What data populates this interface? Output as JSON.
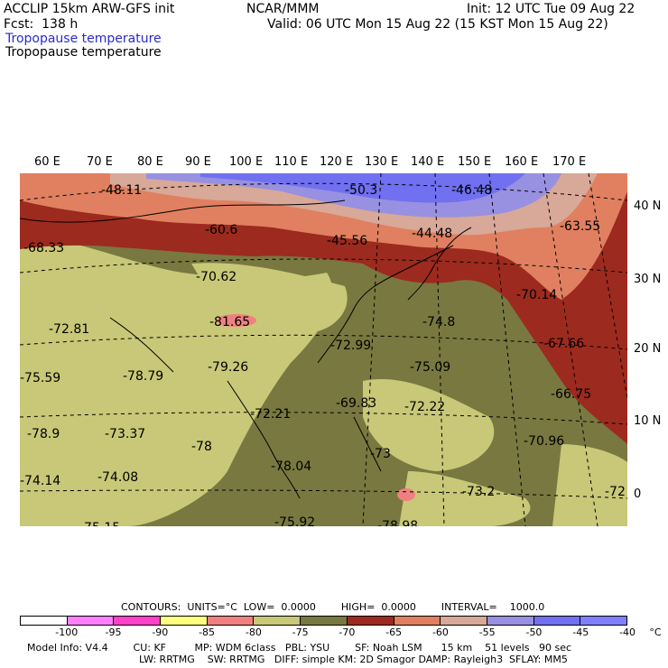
{
  "header": {
    "model": "ACCLIP 15km ARW-GFS init",
    "org": "NCAR/MMM",
    "init": "Init: 12 UTC Tue 09 Aug 22",
    "fcst": "Fcst:  138 h",
    "valid": "Valid: 06 UTC Mon 15 Aug 22 (15 KST Mon 15 Aug 22)",
    "field1": "Tropopause temperature",
    "field2": "Tropopause temperature"
  },
  "map": {
    "lon_labels": [
      "60 E",
      "70 E",
      "80 E",
      "90 E",
      "100 E",
      "110 E",
      "120 E",
      "130 E",
      "140 E",
      "150 E",
      "160 E",
      "170 E"
    ],
    "lat_labels": [
      "40 N",
      "30 N",
      "20 N",
      "10 N",
      "0"
    ],
    "values": [
      "-48.11",
      "-50.3",
      "-46.48",
      "-60.6",
      "-45.56",
      "-44.48",
      "-63.55",
      "-68.33",
      "-70.62",
      "-70.14",
      "-72.81",
      "-81.65",
      "-74.8",
      "-67.66",
      "-72.99",
      "-75.09",
      "-75.59",
      "-78.79",
      "-79.26",
      "-66.75",
      "-69.83",
      "-72.22",
      "-72.21",
      "-78.9",
      "-73.37",
      "-78",
      "-70.96",
      "-73",
      "-78.04",
      "-74.14",
      "-74.08",
      "-73.2",
      "-72",
      "-75.15",
      "-75.92",
      "-78.98"
    ]
  },
  "colors": {
    "water_low": "#ffffff",
    "c1": "#ff80ff",
    "c2": "#ff40c8",
    "c3": "#ffff80",
    "c4": "#f08080",
    "c5": "#c8c878",
    "c6": "#787840",
    "c7": "#9c2a1e",
    "c8": "#e08060",
    "c9": "#d8a898",
    "c10": "#9890e0",
    "c11": "#7070f0",
    "c12": "#8080ff"
  },
  "colorbar": {
    "contours_label": "CONTOURS:  UNITS=°C  LOW=  0.0000        HIGH=  0.0000        INTERVAL=    1000.0",
    "ticks": [
      "-100",
      "-95",
      "-90",
      "-85",
      "-80",
      "-75",
      "-70",
      "-65",
      "-60",
      "-55",
      "-50",
      "-45",
      "-40",
      "°C"
    ]
  },
  "footer": {
    "line1": "Model Info: V4.4        CU: KF         MP: WDM 6class   PBL: YSU        SF: Noah LSM      15 km    51 levels   90 sec",
    "line2": "LW: RRTMG    SW: RRTMG   DIFF: simple KM: 2D Smagor DAMP: Rayleigh3  SFLAY: MM5"
  }
}
